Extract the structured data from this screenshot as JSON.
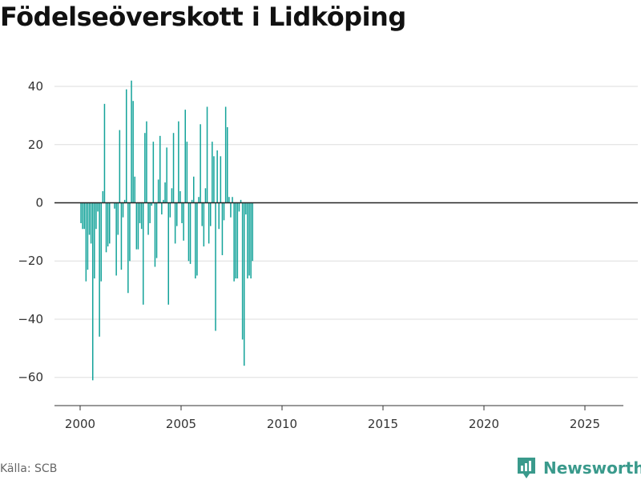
{
  "title": "Födelseöverskott i Lidköping",
  "source": "Källa: SCB",
  "brand": {
    "name": "Newsworthy",
    "icon": "newsworthy-logo-icon",
    "color": "#3a9a8c"
  },
  "colors": {
    "bar": "#14a39a",
    "zero_line": "#222222",
    "grid": "#dddddd",
    "axis": "#333333"
  },
  "chart_data": {
    "type": "bar",
    "title": "Födelseöverskott i Lidköping",
    "xlabel": "",
    "ylabel": "",
    "ylim": [
      -70,
      48
    ],
    "yticks": [
      -60,
      -40,
      -20,
      0,
      20,
      40
    ],
    "ytick_labels": [
      "−60",
      "−40",
      "−20",
      "0",
      "20",
      "40"
    ],
    "xticks": [
      2000,
      2005,
      2010,
      2015,
      2020,
      2025
    ],
    "xtick_labels": [
      "2000",
      "2005",
      "2010",
      "2015",
      "2020",
      "2025"
    ],
    "frequency": "monthly",
    "start": "2000-01",
    "grid": true,
    "legend": "none",
    "values": [
      -7,
      -9,
      -9,
      -27,
      -23,
      -11,
      -14,
      -61,
      -26,
      -9,
      -3,
      -46,
      -27,
      4,
      34,
      -17,
      -15,
      -14,
      0,
      0,
      -2,
      -25,
      -11,
      25,
      -23,
      -5,
      1,
      39,
      -31,
      -20,
      42,
      35,
      9,
      -16,
      -16,
      -7,
      -9,
      -35,
      24,
      28,
      -11,
      -7,
      -1,
      21,
      -22,
      -19,
      8,
      23,
      -4,
      1,
      7,
      19,
      -35,
      -5,
      5,
      24,
      -14,
      -8,
      28,
      4,
      -7,
      -13,
      32,
      21,
      -20,
      -21,
      1,
      9,
      -26,
      -25,
      2,
      27,
      -8,
      -15,
      5,
      33,
      -14,
      -8,
      21,
      16,
      -44,
      18,
      -9,
      16,
      -18,
      -6,
      33,
      26,
      2,
      -5,
      2,
      -27,
      -26,
      -26,
      -3,
      1,
      -47,
      -56,
      -4,
      -26,
      -25,
      -26,
      -20
    ]
  }
}
